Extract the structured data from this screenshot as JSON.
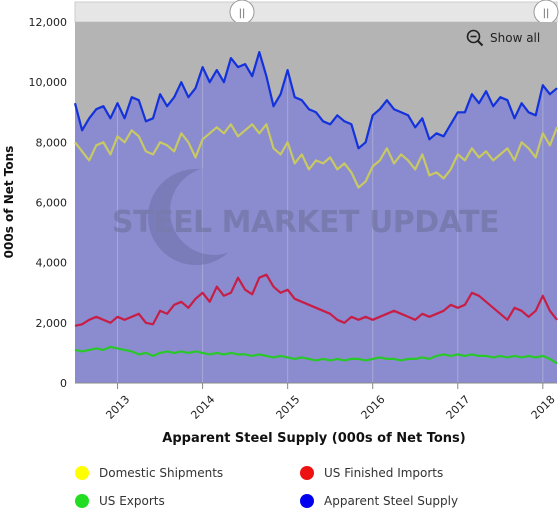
{
  "chart_data": {
    "type": "line",
    "title": "",
    "xlabel": "Apparent Steel Supply (000s of Net Tons)",
    "ylabel": "000s of Net Tons",
    "ylim": [
      0,
      12000
    ],
    "y_ticks": [
      "0",
      "2,000",
      "4,000",
      "6,000",
      "8,000",
      "10,000",
      "12,000"
    ],
    "x_ticks": [
      "2013",
      "2014",
      "2015",
      "2016",
      "2017",
      "2018"
    ],
    "x_range": [
      "2012-07",
      "2018-03"
    ],
    "grid": "vertical",
    "legend_position": "bottom",
    "watermark": "STEEL MARKET UPDATE",
    "series": [
      {
        "name": "Domestic Shipments",
        "color": "#c8c864",
        "legend_color": "#ffff00",
        "points": [
          [
            "2012-07",
            8000
          ],
          [
            "2012-08",
            7700
          ],
          [
            "2012-09",
            7400
          ],
          [
            "2012-10",
            7900
          ],
          [
            "2012-11",
            8000
          ],
          [
            "2012-12",
            7600
          ],
          [
            "2013-01",
            8200
          ],
          [
            "2013-02",
            8000
          ],
          [
            "2013-03",
            8400
          ],
          [
            "2013-04",
            8200
          ],
          [
            "2013-05",
            7700
          ],
          [
            "2013-06",
            7600
          ],
          [
            "2013-07",
            8000
          ],
          [
            "2013-08",
            7900
          ],
          [
            "2013-09",
            7700
          ],
          [
            "2013-10",
            8300
          ],
          [
            "2013-11",
            8000
          ],
          [
            "2013-12",
            7500
          ],
          [
            "2014-01",
            8100
          ],
          [
            "2014-02",
            8300
          ],
          [
            "2014-03",
            8500
          ],
          [
            "2014-04",
            8300
          ],
          [
            "2014-05",
            8600
          ],
          [
            "2014-06",
            8200
          ],
          [
            "2014-07",
            8400
          ],
          [
            "2014-08",
            8600
          ],
          [
            "2014-09",
            8300
          ],
          [
            "2014-10",
            8600
          ],
          [
            "2014-11",
            7800
          ],
          [
            "2014-12",
            7600
          ],
          [
            "2015-01",
            8000
          ],
          [
            "2015-02",
            7300
          ],
          [
            "2015-03",
            7600
          ],
          [
            "2015-04",
            7100
          ],
          [
            "2015-05",
            7400
          ],
          [
            "2015-06",
            7300
          ],
          [
            "2015-07",
            7500
          ],
          [
            "2015-08",
            7100
          ],
          [
            "2015-09",
            7300
          ],
          [
            "2015-10",
            7000
          ],
          [
            "2015-11",
            6500
          ],
          [
            "2015-12",
            6700
          ],
          [
            "2016-01",
            7200
          ],
          [
            "2016-02",
            7400
          ],
          [
            "2016-03",
            7800
          ],
          [
            "2016-04",
            7300
          ],
          [
            "2016-05",
            7600
          ],
          [
            "2016-06",
            7400
          ],
          [
            "2016-07",
            7100
          ],
          [
            "2016-08",
            7600
          ],
          [
            "2016-09",
            6900
          ],
          [
            "2016-10",
            7000
          ],
          [
            "2016-11",
            6800
          ],
          [
            "2016-12",
            7100
          ],
          [
            "2017-01",
            7600
          ],
          [
            "2017-02",
            7400
          ],
          [
            "2017-03",
            7800
          ],
          [
            "2017-04",
            7500
          ],
          [
            "2017-05",
            7700
          ],
          [
            "2017-06",
            7400
          ],
          [
            "2017-07",
            7600
          ],
          [
            "2017-08",
            7800
          ],
          [
            "2017-09",
            7400
          ],
          [
            "2017-10",
            8000
          ],
          [
            "2017-11",
            7800
          ],
          [
            "2017-12",
            7500
          ],
          [
            "2018-01",
            8300
          ],
          [
            "2018-02",
            7900
          ],
          [
            "2018-03",
            8500
          ]
        ]
      },
      {
        "name": "US Finished Imports",
        "color": "#c81e46",
        "legend_color": "#ee1111",
        "points": [
          [
            "2012-07",
            1900
          ],
          [
            "2012-08",
            1950
          ],
          [
            "2012-09",
            2100
          ],
          [
            "2012-10",
            2200
          ],
          [
            "2012-11",
            2100
          ],
          [
            "2012-12",
            2000
          ],
          [
            "2013-01",
            2200
          ],
          [
            "2013-02",
            2100
          ],
          [
            "2013-03",
            2200
          ],
          [
            "2013-04",
            2300
          ],
          [
            "2013-05",
            2000
          ],
          [
            "2013-06",
            1950
          ],
          [
            "2013-07",
            2400
          ],
          [
            "2013-08",
            2300
          ],
          [
            "2013-09",
            2600
          ],
          [
            "2013-10",
            2700
          ],
          [
            "2013-11",
            2500
          ],
          [
            "2013-12",
            2800
          ],
          [
            "2014-01",
            3000
          ],
          [
            "2014-02",
            2700
          ],
          [
            "2014-03",
            3200
          ],
          [
            "2014-04",
            2900
          ],
          [
            "2014-05",
            3000
          ],
          [
            "2014-06",
            3500
          ],
          [
            "2014-07",
            3100
          ],
          [
            "2014-08",
            2950
          ],
          [
            "2014-09",
            3500
          ],
          [
            "2014-10",
            3600
          ],
          [
            "2014-11",
            3200
          ],
          [
            "2014-12",
            3000
          ],
          [
            "2015-01",
            3100
          ],
          [
            "2015-02",
            2800
          ],
          [
            "2015-03",
            2700
          ],
          [
            "2015-04",
            2600
          ],
          [
            "2015-05",
            2500
          ],
          [
            "2015-06",
            2400
          ],
          [
            "2015-07",
            2300
          ],
          [
            "2015-08",
            2100
          ],
          [
            "2015-09",
            2000
          ],
          [
            "2015-10",
            2200
          ],
          [
            "2015-11",
            2100
          ],
          [
            "2015-12",
            2200
          ],
          [
            "2016-01",
            2100
          ],
          [
            "2016-02",
            2200
          ],
          [
            "2016-03",
            2300
          ],
          [
            "2016-04",
            2400
          ],
          [
            "2016-05",
            2300
          ],
          [
            "2016-06",
            2200
          ],
          [
            "2016-07",
            2100
          ],
          [
            "2016-08",
            2300
          ],
          [
            "2016-09",
            2200
          ],
          [
            "2016-10",
            2300
          ],
          [
            "2016-11",
            2400
          ],
          [
            "2016-12",
            2600
          ],
          [
            "2017-01",
            2500
          ],
          [
            "2017-02",
            2600
          ],
          [
            "2017-03",
            3000
          ],
          [
            "2017-04",
            2900
          ],
          [
            "2017-05",
            2700
          ],
          [
            "2017-06",
            2500
          ],
          [
            "2017-07",
            2300
          ],
          [
            "2017-08",
            2100
          ],
          [
            "2017-09",
            2500
          ],
          [
            "2017-10",
            2400
          ],
          [
            "2017-11",
            2200
          ],
          [
            "2017-12",
            2400
          ],
          [
            "2018-01",
            2900
          ],
          [
            "2018-02",
            2400
          ],
          [
            "2018-03",
            2100
          ]
        ]
      },
      {
        "name": "US Exports",
        "color": "#28c828",
        "legend_color": "#22dd22",
        "points": [
          [
            "2012-07",
            1100
          ],
          [
            "2012-08",
            1050
          ],
          [
            "2012-09",
            1100
          ],
          [
            "2012-10",
            1150
          ],
          [
            "2012-11",
            1100
          ],
          [
            "2012-12",
            1200
          ],
          [
            "2013-01",
            1150
          ],
          [
            "2013-02",
            1100
          ],
          [
            "2013-03",
            1050
          ],
          [
            "2013-04",
            950
          ],
          [
            "2013-05",
            1000
          ],
          [
            "2013-06",
            900
          ],
          [
            "2013-07",
            1000
          ],
          [
            "2013-08",
            1050
          ],
          [
            "2013-09",
            1000
          ],
          [
            "2013-10",
            1050
          ],
          [
            "2013-11",
            1000
          ],
          [
            "2013-12",
            1050
          ],
          [
            "2014-01",
            1000
          ],
          [
            "2014-02",
            950
          ],
          [
            "2014-03",
            1000
          ],
          [
            "2014-04",
            950
          ],
          [
            "2014-05",
            1000
          ],
          [
            "2014-06",
            950
          ],
          [
            "2014-07",
            950
          ],
          [
            "2014-08",
            900
          ],
          [
            "2014-09",
            950
          ],
          [
            "2014-10",
            900
          ],
          [
            "2014-11",
            850
          ],
          [
            "2014-12",
            900
          ],
          [
            "2015-01",
            850
          ],
          [
            "2015-02",
            800
          ],
          [
            "2015-03",
            850
          ],
          [
            "2015-04",
            800
          ],
          [
            "2015-05",
            750
          ],
          [
            "2015-06",
            800
          ],
          [
            "2015-07",
            750
          ],
          [
            "2015-08",
            800
          ],
          [
            "2015-09",
            750
          ],
          [
            "2015-10",
            800
          ],
          [
            "2015-11",
            800
          ],
          [
            "2015-12",
            750
          ],
          [
            "2016-01",
            800
          ],
          [
            "2016-02",
            850
          ],
          [
            "2016-03",
            800
          ],
          [
            "2016-04",
            800
          ],
          [
            "2016-05",
            750
          ],
          [
            "2016-06",
            800
          ],
          [
            "2016-07",
            800
          ],
          [
            "2016-08",
            850
          ],
          [
            "2016-09",
            800
          ],
          [
            "2016-10",
            900
          ],
          [
            "2016-11",
            950
          ],
          [
            "2016-12",
            900
          ],
          [
            "2017-01",
            950
          ],
          [
            "2017-02",
            900
          ],
          [
            "2017-03",
            950
          ],
          [
            "2017-04",
            900
          ],
          [
            "2017-05",
            900
          ],
          [
            "2017-06",
            850
          ],
          [
            "2017-07",
            900
          ],
          [
            "2017-08",
            850
          ],
          [
            "2017-09",
            900
          ],
          [
            "2017-10",
            850
          ],
          [
            "2017-11",
            900
          ],
          [
            "2017-12",
            850
          ],
          [
            "2018-01",
            900
          ],
          [
            "2018-02",
            800
          ],
          [
            "2018-03",
            650
          ]
        ]
      },
      {
        "name": "Apparent Steel Supply",
        "color": "#1432dc",
        "legend_color": "#0000ee",
        "points": [
          [
            "2012-07",
            9300
          ],
          [
            "2012-08",
            8400
          ],
          [
            "2012-09",
            8800
          ],
          [
            "2012-10",
            9100
          ],
          [
            "2012-11",
            9200
          ],
          [
            "2012-12",
            8800
          ],
          [
            "2013-01",
            9300
          ],
          [
            "2013-02",
            8800
          ],
          [
            "2013-03",
            9500
          ],
          [
            "2013-04",
            9400
          ],
          [
            "2013-05",
            8700
          ],
          [
            "2013-06",
            8800
          ],
          [
            "2013-07",
            9600
          ],
          [
            "2013-08",
            9200
          ],
          [
            "2013-09",
            9500
          ],
          [
            "2013-10",
            10000
          ],
          [
            "2013-11",
            9500
          ],
          [
            "2013-12",
            9800
          ],
          [
            "2014-01",
            10500
          ],
          [
            "2014-02",
            10000
          ],
          [
            "2014-03",
            10400
          ],
          [
            "2014-04",
            10000
          ],
          [
            "2014-05",
            10800
          ],
          [
            "2014-06",
            10500
          ],
          [
            "2014-07",
            10600
          ],
          [
            "2014-08",
            10200
          ],
          [
            "2014-09",
            11000
          ],
          [
            "2014-10",
            10200
          ],
          [
            "2014-11",
            9200
          ],
          [
            "2014-12",
            9600
          ],
          [
            "2015-01",
            10400
          ],
          [
            "2015-02",
            9500
          ],
          [
            "2015-03",
            9400
          ],
          [
            "2015-04",
            9100
          ],
          [
            "2015-05",
            9000
          ],
          [
            "2015-06",
            8700
          ],
          [
            "2015-07",
            8600
          ],
          [
            "2015-08",
            8900
          ],
          [
            "2015-09",
            8700
          ],
          [
            "2015-10",
            8600
          ],
          [
            "2015-11",
            7800
          ],
          [
            "2015-12",
            8000
          ],
          [
            "2016-01",
            8900
          ],
          [
            "2016-02",
            9100
          ],
          [
            "2016-03",
            9400
          ],
          [
            "2016-04",
            9100
          ],
          [
            "2016-05",
            9000
          ],
          [
            "2016-06",
            8900
          ],
          [
            "2016-07",
            8500
          ],
          [
            "2016-08",
            8800
          ],
          [
            "2016-09",
            8100
          ],
          [
            "2016-10",
            8300
          ],
          [
            "2016-11",
            8200
          ],
          [
            "2016-12",
            8600
          ],
          [
            "2017-01",
            9000
          ],
          [
            "2017-02",
            9000
          ],
          [
            "2017-03",
            9600
          ],
          [
            "2017-04",
            9300
          ],
          [
            "2017-05",
            9700
          ],
          [
            "2017-06",
            9200
          ],
          [
            "2017-07",
            9500
          ],
          [
            "2017-08",
            9400
          ],
          [
            "2017-09",
            8800
          ],
          [
            "2017-10",
            9300
          ],
          [
            "2017-11",
            9000
          ],
          [
            "2017-12",
            8900
          ],
          [
            "2018-01",
            9900
          ],
          [
            "2018-02",
            9600
          ],
          [
            "2018-03",
            9800
          ]
        ]
      }
    ]
  },
  "controls": {
    "show_all_label": "Show all",
    "navigator_left_handle": "||",
    "navigator_right_handle": "||"
  },
  "colors": {
    "plot_background": "#8a8ccf",
    "upper_band": "#b4b4b4",
    "navigator_fill": "#e6e6e6"
  }
}
